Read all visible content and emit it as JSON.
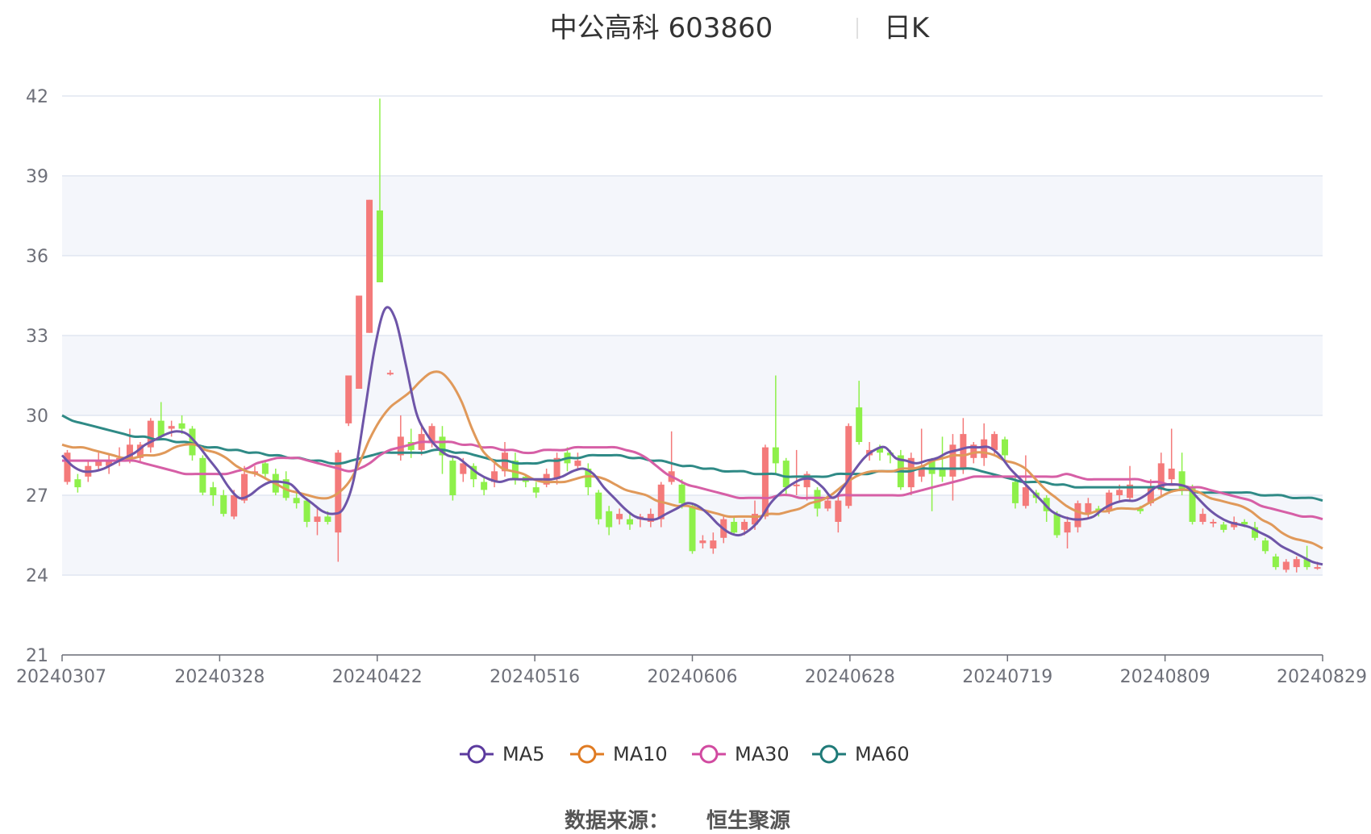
{
  "chart_data": {
    "type": "candlestick",
    "title": "中公高科 603860",
    "subtitle": "日K",
    "source_label": "数据来源：",
    "source_name": "恒生聚源",
    "ylim": [
      21,
      42
    ],
    "y_ticks": [
      "42",
      "39",
      "36",
      "33",
      "30",
      "27",
      "24",
      "21"
    ],
    "x_ticks": [
      "20240307",
      "20240328",
      "20240422",
      "20240516",
      "20240606",
      "20240628",
      "20240719",
      "20240809",
      "20240829"
    ],
    "grid": true,
    "legend_position": "bottom",
    "colors": {
      "up": "#f47a7a",
      "down": "#8ef04a",
      "MA5": "#6e55a8",
      "MA10": "#e0995a",
      "MA30": "#d65fa6",
      "MA60": "#2f8a86"
    },
    "legend": [
      {
        "name": "MA5",
        "color": "#5b3a9e"
      },
      {
        "name": "MA10",
        "color": "#e07b22"
      },
      {
        "name": "MA30",
        "color": "#d14aa0"
      },
      {
        "name": "MA60",
        "color": "#1f7a78"
      }
    ],
    "candles": [
      [
        27.5,
        28.6,
        28.7,
        27.4
      ],
      [
        27.6,
        27.3,
        27.8,
        27.1
      ],
      [
        27.7,
        28.1,
        28.3,
        27.5
      ],
      [
        28.1,
        28.3,
        28.6,
        27.9
      ],
      [
        28.1,
        28.3,
        28.5,
        27.8
      ],
      [
        28.3,
        28.4,
        28.8,
        28.1
      ],
      [
        28.4,
        28.9,
        29.5,
        28.2
      ],
      [
        28.4,
        28.9,
        29.0,
        28.2
      ],
      [
        28.8,
        29.8,
        29.9,
        28.6
      ],
      [
        29.8,
        29.2,
        30.5,
        29.1
      ],
      [
        29.5,
        29.6,
        29.8,
        29.2
      ],
      [
        29.7,
        29.5,
        30.0,
        29.3
      ],
      [
        29.5,
        28.5,
        29.6,
        28.3
      ],
      [
        28.4,
        27.1,
        28.5,
        27.0
      ],
      [
        27.3,
        27.0,
        27.5,
        26.6
      ],
      [
        27.0,
        26.3,
        27.2,
        26.2
      ],
      [
        26.2,
        27.0,
        27.2,
        26.1
      ],
      [
        26.8,
        27.8,
        28.1,
        26.7
      ],
      [
        27.8,
        27.9,
        28.1,
        27.7
      ],
      [
        28.2,
        27.8,
        28.3,
        27.6
      ],
      [
        27.8,
        27.1,
        28.0,
        27.0
      ],
      [
        27.6,
        26.9,
        27.9,
        26.8
      ],
      [
        26.9,
        26.7,
        27.1,
        26.5
      ],
      [
        26.8,
        26.0,
        26.9,
        25.8
      ],
      [
        26.0,
        26.2,
        26.5,
        25.5
      ],
      [
        26.2,
        26.0,
        26.4,
        25.9
      ],
      [
        25.6,
        28.6,
        28.7,
        24.5
      ],
      [
        29.7,
        31.5,
        31.5,
        29.6
      ],
      [
        31.0,
        34.5,
        34.5,
        31.0
      ],
      [
        33.1,
        38.1,
        38.1,
        33.1
      ],
      [
        37.7,
        35.0,
        41.9,
        35.0
      ],
      [
        31.6,
        31.6,
        31.7,
        31.5
      ],
      [
        28.5,
        29.2,
        30.0,
        28.3
      ],
      [
        29.0,
        28.7,
        29.5,
        28.4
      ],
      [
        28.7,
        29.3,
        29.7,
        28.5
      ],
      [
        29.0,
        29.6,
        29.7,
        28.8
      ],
      [
        29.2,
        28.5,
        29.6,
        27.8
      ],
      [
        28.3,
        27.0,
        28.5,
        26.8
      ],
      [
        27.8,
        28.2,
        28.4,
        27.5
      ],
      [
        28.1,
        27.6,
        28.2,
        27.3
      ],
      [
        27.5,
        27.2,
        27.7,
        27.0
      ],
      [
        27.5,
        27.9,
        28.2,
        27.3
      ],
      [
        27.9,
        28.6,
        29.0,
        27.7
      ],
      [
        28.3,
        27.6,
        28.6,
        27.4
      ],
      [
        27.7,
        27.5,
        27.8,
        27.3
      ],
      [
        27.3,
        27.1,
        27.5,
        26.9
      ],
      [
        27.4,
        27.8,
        28.0,
        27.3
      ],
      [
        27.6,
        28.4,
        28.6,
        27.4
      ],
      [
        28.6,
        28.2,
        28.8,
        27.9
      ],
      [
        28.1,
        28.3,
        28.6,
        28.0
      ],
      [
        28.0,
        27.3,
        28.2,
        27.0
      ],
      [
        27.1,
        26.1,
        27.2,
        25.9
      ],
      [
        26.4,
        25.8,
        26.6,
        25.5
      ],
      [
        26.1,
        26.3,
        26.5,
        25.9
      ],
      [
        26.1,
        25.9,
        26.3,
        25.7
      ],
      [
        26.1,
        26.2,
        26.3,
        25.8
      ],
      [
        26.0,
        26.3,
        26.5,
        25.8
      ],
      [
        26.1,
        27.4,
        27.5,
        25.8
      ],
      [
        27.5,
        27.9,
        29.4,
        27.4
      ],
      [
        27.4,
        26.7,
        27.6,
        26.5
      ],
      [
        26.6,
        24.9,
        26.7,
        24.8
      ],
      [
        25.2,
        25.3,
        25.5,
        25.0
      ],
      [
        25.0,
        25.3,
        25.6,
        24.8
      ],
      [
        25.4,
        26.1,
        26.2,
        25.2
      ],
      [
        26.0,
        25.6,
        26.2,
        25.5
      ],
      [
        25.7,
        26.0,
        26.1,
        25.5
      ],
      [
        25.9,
        26.3,
        26.8,
        25.7
      ],
      [
        26.2,
        28.8,
        28.9,
        26.1
      ],
      [
        28.8,
        28.2,
        31.5,
        27.8
      ],
      [
        28.3,
        27.3,
        28.4,
        27.0
      ],
      [
        27.4,
        27.4,
        28.7,
        27.0
      ],
      [
        27.3,
        27.8,
        27.9,
        26.8
      ],
      [
        27.2,
        26.5,
        27.3,
        26.2
      ],
      [
        26.5,
        26.8,
        27.1,
        26.4
      ],
      [
        26.0,
        26.8,
        27.0,
        25.6
      ],
      [
        26.6,
        29.6,
        29.7,
        26.5
      ],
      [
        30.3,
        29.0,
        31.3,
        28.9
      ],
      [
        28.5,
        28.7,
        29.0,
        28.3
      ],
      [
        28.8,
        28.6,
        28.9,
        28.3
      ],
      [
        28.6,
        28.5,
        28.7,
        28.2
      ],
      [
        28.5,
        27.3,
        28.7,
        27.2
      ],
      [
        27.3,
        28.4,
        28.6,
        27.0
      ],
      [
        27.7,
        28.1,
        29.5,
        27.5
      ],
      [
        28.3,
        27.8,
        28.4,
        26.4
      ],
      [
        28.0,
        27.7,
        29.2,
        27.5
      ],
      [
        27.7,
        28.9,
        29.3,
        26.8
      ],
      [
        28.0,
        29.3,
        29.9,
        27.8
      ],
      [
        28.4,
        28.9,
        29.0,
        28.2
      ],
      [
        28.4,
        29.1,
        29.7,
        28.1
      ],
      [
        28.7,
        29.3,
        29.4,
        28.5
      ],
      [
        29.1,
        28.5,
        29.2,
        28.3
      ],
      [
        27.5,
        26.7,
        27.7,
        26.5
      ],
      [
        26.6,
        27.3,
        28.5,
        26.5
      ],
      [
        27.1,
        26.9,
        27.2,
        26.7
      ],
      [
        26.9,
        26.4,
        27.0,
        26.0
      ],
      [
        26.3,
        25.5,
        26.4,
        25.4
      ],
      [
        25.6,
        26.0,
        26.2,
        25.0
      ],
      [
        25.8,
        26.7,
        26.8,
        25.6
      ],
      [
        26.3,
        26.7,
        26.9,
        26.1
      ],
      [
        26.5,
        26.4,
        26.6,
        26.2
      ],
      [
        26.4,
        27.1,
        27.2,
        26.3
      ],
      [
        27.0,
        27.2,
        27.4,
        26.8
      ],
      [
        26.9,
        27.4,
        28.1,
        26.8
      ],
      [
        26.5,
        26.4,
        26.6,
        26.3
      ],
      [
        26.7,
        27.3,
        27.6,
        26.6
      ],
      [
        27.2,
        28.2,
        28.6,
        27.0
      ],
      [
        27.6,
        28.0,
        29.5,
        27.4
      ],
      [
        27.9,
        27.2,
        28.6,
        27.0
      ],
      [
        27.3,
        26.0,
        27.4,
        25.9
      ],
      [
        26.0,
        26.3,
        26.5,
        25.9
      ],
      [
        26.0,
        26.0,
        26.1,
        25.8
      ],
      [
        25.9,
        25.7,
        26.0,
        25.6
      ],
      [
        25.8,
        26.0,
        26.2,
        25.7
      ],
      [
        26.0,
        25.9,
        26.1,
        25.8
      ],
      [
        25.8,
        25.4,
        26.0,
        25.3
      ],
      [
        25.3,
        24.9,
        25.4,
        24.8
      ],
      [
        24.7,
        24.3,
        24.8,
        24.2
      ],
      [
        24.2,
        24.5,
        24.6,
        24.1
      ],
      [
        24.3,
        24.6,
        24.7,
        24.1
      ],
      [
        24.6,
        24.3,
        25.1,
        24.2
      ],
      [
        24.3,
        24.3,
        24.5,
        24.2
      ]
    ],
    "ma_series": [
      {
        "name": "MA5",
        "values": [
          28.5,
          28.1,
          27.9,
          27.9,
          28.0,
          28.2,
          28.4,
          28.6,
          28.9,
          29.1,
          29.3,
          29.4,
          29.3,
          28.9,
          28.4,
          27.9,
          27.3,
          26.9,
          27.0,
          27.3,
          27.5,
          27.5,
          27.4,
          27.0,
          26.7,
          26.4,
          26.3,
          26.5,
          27.6,
          30.0,
          32.5,
          34.0,
          33.6,
          31.9,
          30.1,
          29.3,
          28.8,
          28.5,
          28.4,
          28.1,
          27.8,
          27.6,
          27.5,
          27.6,
          27.6,
          27.6,
          27.6,
          27.6,
          27.7,
          27.9,
          28.0,
          27.8,
          27.3,
          26.9,
          26.5,
          26.2,
          26.1,
          26.1,
          26.3,
          26.5,
          26.7,
          26.6,
          26.3,
          25.9,
          25.6,
          25.5,
          25.7,
          26.1,
          26.7,
          27.1,
          27.4,
          27.6,
          27.6,
          27.3,
          26.9,
          27.3,
          27.9,
          28.4,
          28.7,
          28.8,
          28.4,
          28.3,
          28.2,
          28.3,
          28.4,
          28.6,
          28.7,
          28.8,
          28.8,
          28.8,
          28.5,
          28.0,
          27.6,
          27.2,
          26.8,
          26.4,
          26.2,
          26.1,
          26.1,
          26.2,
          26.5,
          26.7,
          26.8,
          26.8,
          27.0,
          27.3,
          27.4,
          27.4,
          27.3,
          26.9,
          26.5,
          26.2,
          26.0,
          25.9,
          25.8,
          25.6,
          25.4,
          25.1,
          24.9,
          24.7,
          24.5,
          24.4
        ]
      },
      {
        "name": "MA10",
        "values": [
          28.9,
          28.8,
          28.8,
          28.7,
          28.6,
          28.5,
          28.4,
          28.4,
          28.5,
          28.5,
          28.6,
          28.8,
          28.9,
          28.9,
          28.7,
          28.6,
          28.4,
          28.1,
          27.9,
          27.8,
          27.6,
          27.4,
          27.2,
          27.1,
          27.0,
          26.9,
          26.9,
          27.1,
          27.5,
          28.2,
          29.1,
          29.8,
          30.3,
          30.6,
          30.9,
          31.3,
          31.6,
          31.6,
          31.2,
          30.5,
          29.5,
          28.7,
          28.3,
          28.0,
          27.9,
          27.8,
          27.6,
          27.5,
          27.5,
          27.5,
          27.6,
          27.7,
          27.7,
          27.6,
          27.4,
          27.2,
          27.1,
          27.0,
          26.8,
          26.7,
          26.6,
          26.6,
          26.5,
          26.4,
          26.3,
          26.2,
          26.2,
          26.2,
          26.2,
          26.3,
          26.3,
          26.4,
          26.5,
          26.7,
          26.8,
          27.0,
          27.3,
          27.6,
          27.8,
          27.9,
          27.9,
          27.9,
          28.0,
          28.0,
          28.1,
          28.3,
          28.4,
          28.5,
          28.5,
          28.6,
          28.6,
          28.5,
          28.3,
          28.2,
          28.0,
          27.6,
          27.2,
          26.9,
          26.6,
          26.4,
          26.3,
          26.4,
          26.4,
          26.5,
          26.5,
          26.5,
          26.7,
          26.9,
          27.1,
          27.2,
          27.2,
          27.1,
          26.9,
          26.8,
          26.7,
          26.6,
          26.4,
          26.1,
          25.9,
          25.6,
          25.4,
          25.3,
          25.2,
          25.0
        ]
      },
      {
        "name": "MA30",
        "values": [
          28.3,
          28.3,
          28.3,
          28.3,
          28.3,
          28.3,
          28.3,
          28.3,
          28.2,
          28.1,
          28.0,
          27.9,
          27.8,
          27.8,
          27.8,
          27.8,
          27.8,
          27.9,
          28.0,
          28.2,
          28.3,
          28.4,
          28.4,
          28.4,
          28.3,
          28.2,
          28.1,
          28.0,
          27.9,
          28.0,
          28.2,
          28.5,
          28.7,
          28.8,
          28.9,
          29.0,
          29.0,
          29.0,
          29.0,
          28.9,
          28.9,
          28.8,
          28.8,
          28.7,
          28.7,
          28.6,
          28.6,
          28.7,
          28.7,
          28.7,
          28.8,
          28.8,
          28.8,
          28.8,
          28.8,
          28.7,
          28.6,
          28.4,
          28.1,
          27.8,
          27.6,
          27.4,
          27.3,
          27.2,
          27.1,
          27.0,
          26.9,
          26.9,
          26.9,
          26.9,
          27.0,
          27.0,
          26.9,
          26.9,
          26.9,
          26.9,
          27.0,
          27.0,
          27.0,
          27.0,
          27.0,
          27.0,
          27.0,
          27.1,
          27.2,
          27.3,
          27.4,
          27.5,
          27.6,
          27.7,
          27.7,
          27.7,
          27.7,
          27.7,
          27.7,
          27.7,
          27.7,
          27.7,
          27.8,
          27.7,
          27.6,
          27.6,
          27.6,
          27.6,
          27.6,
          27.6,
          27.5,
          27.5,
          27.4,
          27.4,
          27.3,
          27.3,
          27.2,
          27.1,
          27.0,
          26.9,
          26.8,
          26.6,
          26.5,
          26.4,
          26.3,
          26.2,
          26.2,
          26.1
        ]
      },
      {
        "name": "MA60",
        "values": [
          30.0,
          29.8,
          29.7,
          29.6,
          29.5,
          29.4,
          29.3,
          29.2,
          29.2,
          29.1,
          29.1,
          29.0,
          29.0,
          28.9,
          28.8,
          28.8,
          28.7,
          28.7,
          28.6,
          28.6,
          28.5,
          28.5,
          28.4,
          28.4,
          28.3,
          28.3,
          28.2,
          28.2,
          28.3,
          28.4,
          28.5,
          28.6,
          28.6,
          28.6,
          28.6,
          28.6,
          28.7,
          28.7,
          28.6,
          28.6,
          28.5,
          28.4,
          28.3,
          28.3,
          28.2,
          28.2,
          28.2,
          28.3,
          28.3,
          28.4,
          28.4,
          28.5,
          28.5,
          28.5,
          28.5,
          28.4,
          28.4,
          28.3,
          28.3,
          28.2,
          28.1,
          28.1,
          28.0,
          28.0,
          27.9,
          27.9,
          27.9,
          27.8,
          27.8,
          27.8,
          27.7,
          27.7,
          27.7,
          27.7,
          27.7,
          27.8,
          27.8,
          27.8,
          27.8,
          27.9,
          27.9,
          27.9,
          27.9,
          28.0,
          28.0,
          28.0,
          28.0,
          28.0,
          28.0,
          27.9,
          27.8,
          27.7,
          27.6,
          27.5,
          27.5,
          27.5,
          27.4,
          27.4,
          27.3,
          27.3,
          27.3,
          27.3,
          27.3,
          27.3,
          27.3,
          27.3,
          27.3,
          27.2,
          27.2,
          27.2,
          27.1,
          27.1,
          27.1,
          27.1,
          27.1,
          27.1,
          27.0,
          27.0,
          27.0,
          26.9,
          26.9,
          26.9,
          26.8
        ]
      }
    ]
  }
}
